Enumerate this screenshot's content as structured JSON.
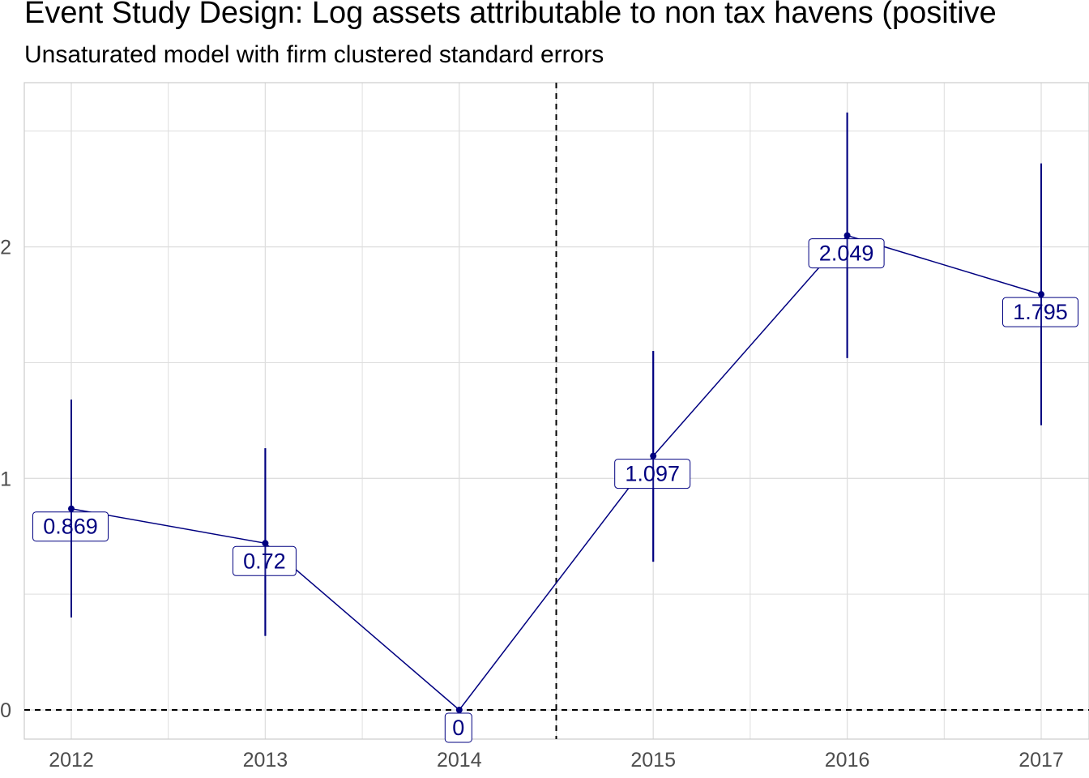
{
  "title": "Event Study Design: Log assets attributable to non tax havens (positive",
  "subtitle": "Unsaturated model with firm clustered standard errors",
  "colors": {
    "series": "#000080",
    "grid": "#dedede",
    "axis_text": "#4d4d4d",
    "reference_line": "#000000"
  },
  "chart_data": {
    "type": "line",
    "title": "Event Study Design: Log assets attributable to non tax havens (positive",
    "subtitle": "Unsaturated model with firm clustered standard errors",
    "xlabel": "",
    "ylabel": "",
    "categories": [
      "2012",
      "2013",
      "2014",
      "2015",
      "2016",
      "2017"
    ],
    "values": [
      0.869,
      0.72,
      0,
      1.097,
      2.049,
      1.795
    ],
    "data_labels": [
      "0.869",
      "0.72",
      "0",
      "1.097",
      "2.049",
      "1.795"
    ],
    "ci_low": [
      0.4,
      0.32,
      0,
      0.64,
      1.52,
      1.23
    ],
    "ci_high": [
      1.34,
      1.13,
      0,
      1.55,
      2.58,
      2.36
    ],
    "y_ticks": [
      0,
      1,
      2
    ],
    "y_tick_labels": [
      "0",
      "1",
      "2"
    ],
    "ylim": [
      -0.13,
      2.7
    ],
    "xlim": [
      2011.75,
      2017.25
    ],
    "reference_lines": {
      "horizontal_y": 0,
      "vertical_x": 2014.5
    },
    "grid": true,
    "legend": "none"
  }
}
